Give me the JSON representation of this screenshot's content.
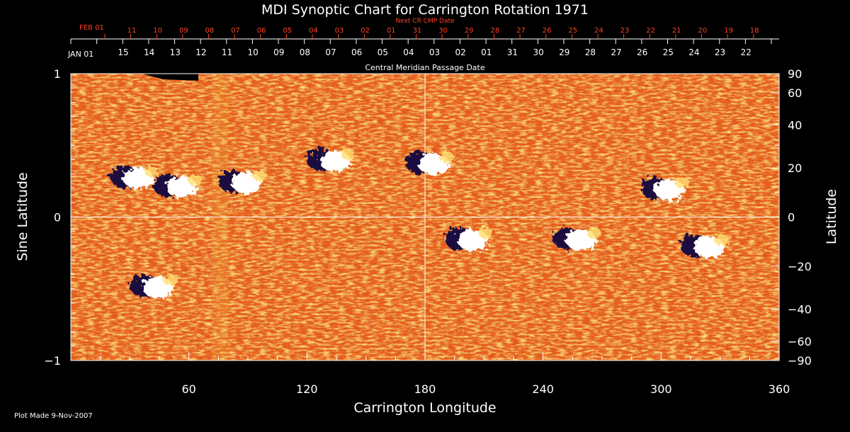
{
  "chart_data": {
    "type": "heatmap",
    "title": "MDI Synoptic Chart for Carrington Rotation 1971",
    "xlabel": "Carrington Longitude",
    "ylabel_left": "Sine Latitude",
    "ylabel_right": "Latitude",
    "xlim": [
      0,
      360
    ],
    "ylim_sine": [
      -1,
      1
    ],
    "x_ticks": [
      60,
      120,
      180,
      240,
      300,
      360
    ],
    "y_ticks_left": [
      -1,
      0,
      1
    ],
    "y_ticks_right": [
      90,
      60,
      40,
      20,
      0,
      -20,
      -40,
      -60,
      -90
    ],
    "y_tick_labels_left": [
      "−1",
      "0",
      "1"
    ],
    "y_tick_labels_right": [
      "90",
      "60",
      "40",
      "20",
      "0",
      "−20",
      "−40",
      "−60",
      "−90"
    ],
    "grid_lines": {
      "longitude": 180,
      "sine_latitude": 0
    },
    "top_axis_label": "Central Meridian Passage Date",
    "next_cr_axis_label": "Next CR CMP Date",
    "start_date_label": "JAN 01",
    "next_start_date_label": "FEB 01",
    "cmp_date_labels": [
      "15",
      "14",
      "13",
      "12",
      "11",
      "10",
      "09",
      "08",
      "07",
      "06",
      "05",
      "04",
      "03",
      "02",
      "01",
      "31",
      "30",
      "29",
      "28",
      "27",
      "26",
      "25",
      "24",
      "23",
      "22"
    ],
    "next_cr_date_labels": [
      "11",
      "10",
      "09",
      "08",
      "07",
      "06",
      "05",
      "04",
      "03",
      "02",
      "01",
      "31",
      "30",
      "29",
      "28",
      "27",
      "26",
      "25",
      "24",
      "23",
      "22",
      "21",
      "20",
      "19",
      "18"
    ],
    "regions": [
      {
        "lon": 30,
        "sinlat": 0.28,
        "polarity": "mixed"
      },
      {
        "lon": 52,
        "sinlat": 0.22,
        "polarity": "mixed"
      },
      {
        "lon": 85,
        "sinlat": 0.25,
        "polarity": "mixed"
      },
      {
        "lon": 130,
        "sinlat": 0.4,
        "polarity": "mixed"
      },
      {
        "lon": 180,
        "sinlat": 0.38,
        "polarity": "mixed"
      },
      {
        "lon": 200,
        "sinlat": -0.15,
        "polarity": "mixed"
      },
      {
        "lon": 255,
        "sinlat": -0.15,
        "polarity": "mixed"
      },
      {
        "lon": 300,
        "sinlat": 0.2,
        "polarity": "mixed"
      },
      {
        "lon": 320,
        "sinlat": -0.2,
        "polarity": "mixed"
      },
      {
        "lon": 40,
        "sinlat": -0.48,
        "polarity": "mixed"
      }
    ],
    "colors": {
      "positive": "#ffffff",
      "negative": "#1a1040",
      "background": "#e8641a",
      "accent": "#ff4020"
    }
  },
  "footer": {
    "plot_made": "Plot Made  9-Nov-2007"
  }
}
